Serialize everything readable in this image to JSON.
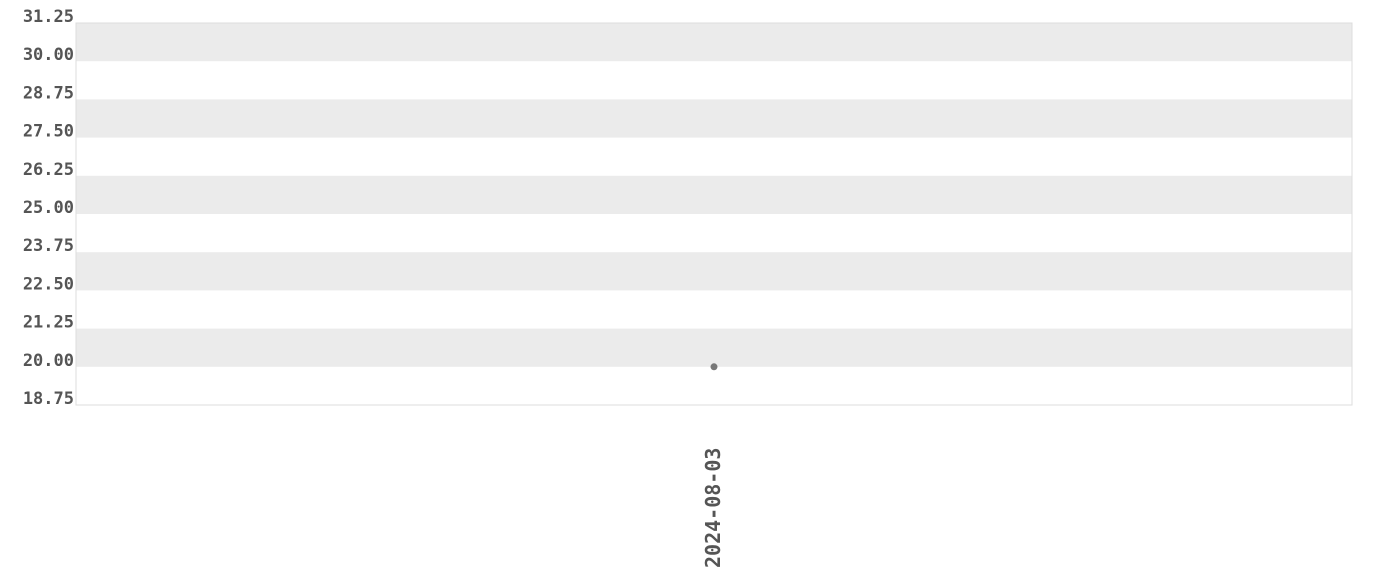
{
  "chart_data": {
    "type": "scatter",
    "title": "",
    "xlabel": "",
    "ylabel": "",
    "x_tick_labels": [
      "2024-08-03"
    ],
    "y_tick_labels": [
      "31.25",
      "30.00",
      "28.75",
      "27.50",
      "26.25",
      "25.00",
      "23.75",
      "22.50",
      "21.25",
      "20.00",
      "18.75"
    ],
    "ylim": [
      18.75,
      31.25
    ],
    "grid": "alternating horizontal bands",
    "series": [
      {
        "x": [
          "2024-08-03"
        ],
        "y": [
          20.0
        ]
      }
    ],
    "colors": {
      "band": "#ebebeb",
      "point": "#777777",
      "text": "#555555",
      "border": "#dddddd"
    }
  }
}
